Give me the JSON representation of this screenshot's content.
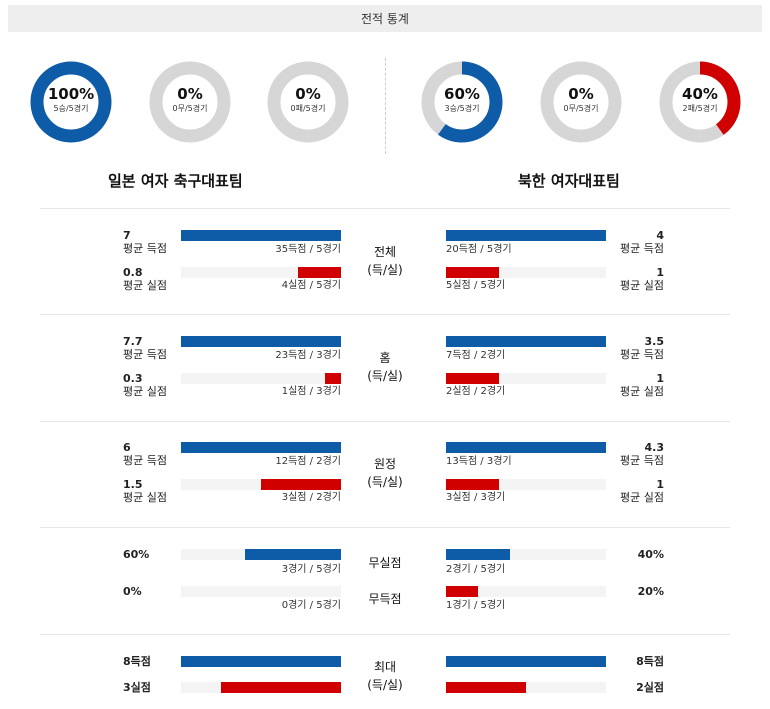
{
  "header": {
    "title": "전적 통계"
  },
  "rings": [
    {
      "pct": "100%",
      "sub": "5승/5경기",
      "value": 1.0,
      "color": "#0e5ca8"
    },
    {
      "pct": "0%",
      "sub": "0무/5경기",
      "value": 0.0,
      "color": "#0e5ca8"
    },
    {
      "pct": "0%",
      "sub": "0패/5경기",
      "value": 0.0,
      "color": "#d00000"
    },
    {
      "pct": "60%",
      "sub": "3승/5경기",
      "value": 0.6,
      "color": "#0e5ca8"
    },
    {
      "pct": "0%",
      "sub": "0무/5경기",
      "value": 0.0,
      "color": "#0e5ca8"
    },
    {
      "pct": "40%",
      "sub": "2패/5경기",
      "value": 0.4,
      "color": "#d00000"
    }
  ],
  "teams": {
    "left": "일본 여자 축구대표팀",
    "right": "북한 여자대표팀"
  },
  "sections": [
    {
      "label1": "전체",
      "label2": "(득/실)",
      "left": {
        "scored_val": "7",
        "scored_lbl": "평균 득점",
        "scored_note": "35득점 / 5경기",
        "scored_frac": 1.0,
        "conceded_val": "0.8",
        "conceded_lbl": "평균 실점",
        "conceded_note": "4실점 / 5경기",
        "conceded_frac": 0.27
      },
      "right": {
        "scored_val": "4",
        "scored_lbl": "평균 득점",
        "scored_note": "20득점 / 5경기",
        "scored_frac": 1.0,
        "conceded_val": "1",
        "conceded_lbl": "평균 실점",
        "conceded_note": "5실점 / 5경기",
        "conceded_frac": 0.33
      }
    },
    {
      "label1": "홈",
      "label2": "(득/실)",
      "left": {
        "scored_val": "7.7",
        "scored_lbl": "평균 득점",
        "scored_note": "23득점 / 3경기",
        "scored_frac": 1.0,
        "conceded_val": "0.3",
        "conceded_lbl": "평균 실점",
        "conceded_note": "1실점 / 3경기",
        "conceded_frac": 0.1
      },
      "right": {
        "scored_val": "3.5",
        "scored_lbl": "평균 득점",
        "scored_note": "7득점 / 2경기",
        "scored_frac": 1.0,
        "conceded_val": "1",
        "conceded_lbl": "평균 실점",
        "conceded_note": "2실점 / 2경기",
        "conceded_frac": 0.33
      }
    },
    {
      "label1": "원정",
      "label2": "(득/실)",
      "left": {
        "scored_val": "6",
        "scored_lbl": "평균 득점",
        "scored_note": "12득점 / 2경기",
        "scored_frac": 1.0,
        "conceded_val": "1.5",
        "conceded_lbl": "평균 실점",
        "conceded_note": "3실점 / 2경기",
        "conceded_frac": 0.5
      },
      "right": {
        "scored_val": "4.3",
        "scored_lbl": "평균 득점",
        "scored_note": "13득점 / 3경기",
        "scored_frac": 1.0,
        "conceded_val": "1",
        "conceded_lbl": "평균 실점",
        "conceded_note": "3실점 / 3경기",
        "conceded_frac": 0.33
      }
    }
  ],
  "clean": {
    "label_clean": "무실점",
    "label_noscore": "무득점",
    "left_clean_val": "60%",
    "left_clean_note": "3경기 / 5경기",
    "left_clean_frac": 0.6,
    "left_noscore_val": "0%",
    "left_noscore_note": "0경기 / 5경기",
    "left_noscore_frac": 0.0,
    "right_clean_val": "40%",
    "right_clean_note": "2경기 / 5경기",
    "right_clean_frac": 0.4,
    "right_noscore_val": "20%",
    "right_noscore_note": "1경기 / 5경기",
    "right_noscore_frac": 0.2
  },
  "max": {
    "label1": "최대",
    "label2": "(득/실)",
    "left_scored": "8득점",
    "left_scored_frac": 1.0,
    "left_conceded": "3실점",
    "left_conceded_frac": 0.75,
    "right_scored": "8득점",
    "right_scored_frac": 1.0,
    "right_conceded": "2실점",
    "right_conceded_frac": 0.5
  }
}
